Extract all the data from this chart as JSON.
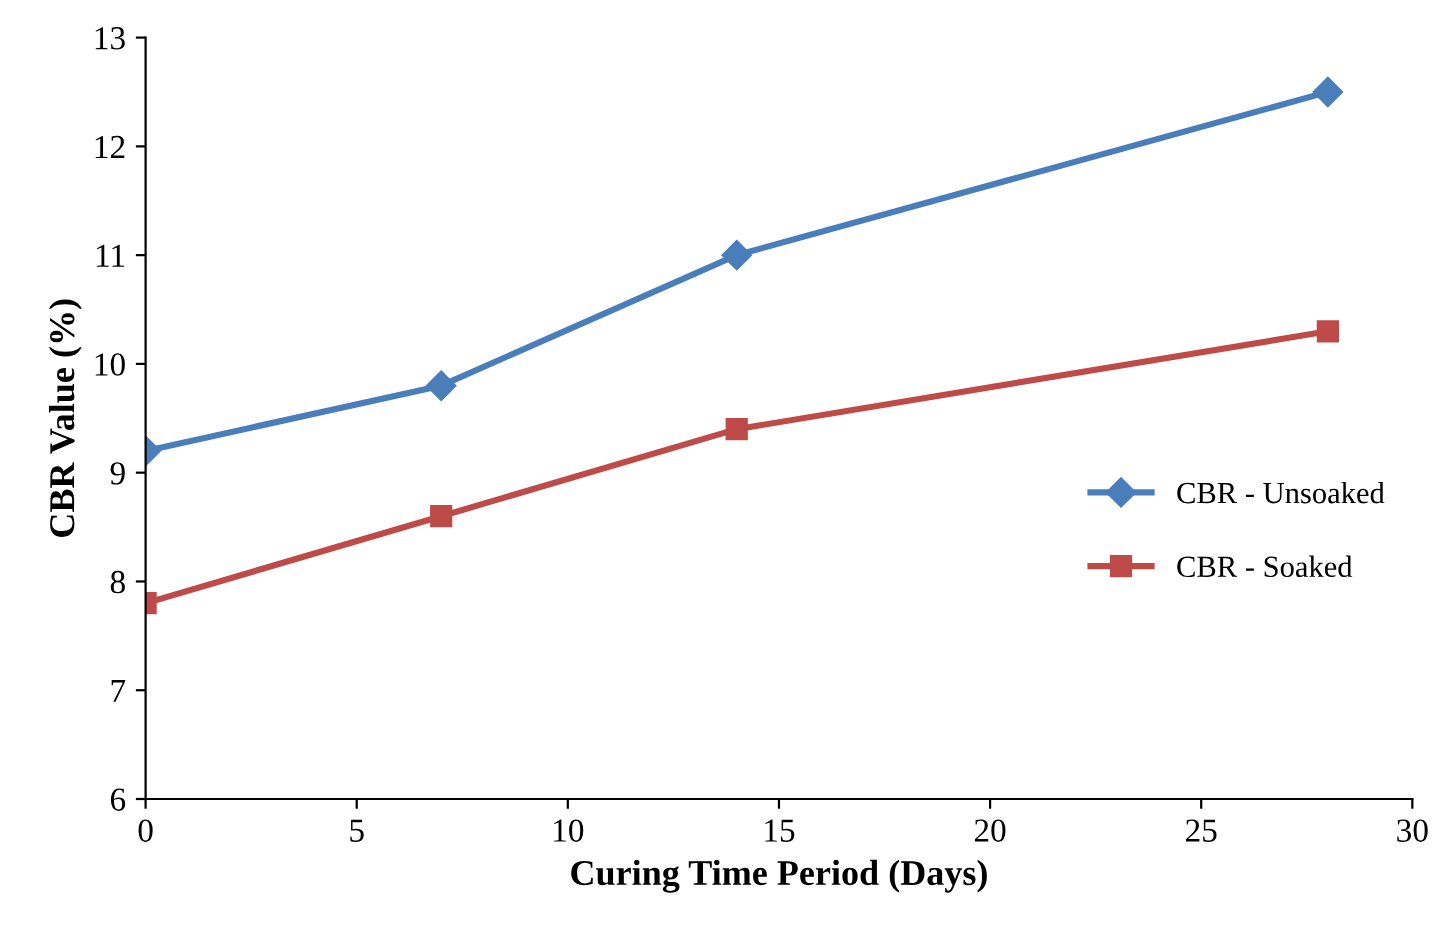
{
  "chart_data": {
    "type": "line",
    "xlabel": "Curing Time Period (Days)",
    "ylabel": "CBR Value (%)",
    "x": [
      0,
      7,
      14,
      28
    ],
    "series": [
      {
        "name": "CBR - Unsoaked",
        "color": "#4a7ebb",
        "marker": "diamond",
        "values": [
          9.2,
          9.8,
          11.0,
          12.5
        ]
      },
      {
        "name": "CBR - Soaked",
        "color": "#be4b48",
        "marker": "square",
        "values": [
          7.8,
          8.6,
          9.4,
          10.3
        ]
      }
    ],
    "xlim": [
      0,
      30
    ],
    "xticks": [
      0,
      5,
      10,
      15,
      20,
      25,
      30
    ],
    "ylim": [
      6,
      13
    ],
    "yticks": [
      6,
      7,
      8,
      9,
      10,
      11,
      12,
      13
    ],
    "grid": false,
    "legend": "right"
  }
}
